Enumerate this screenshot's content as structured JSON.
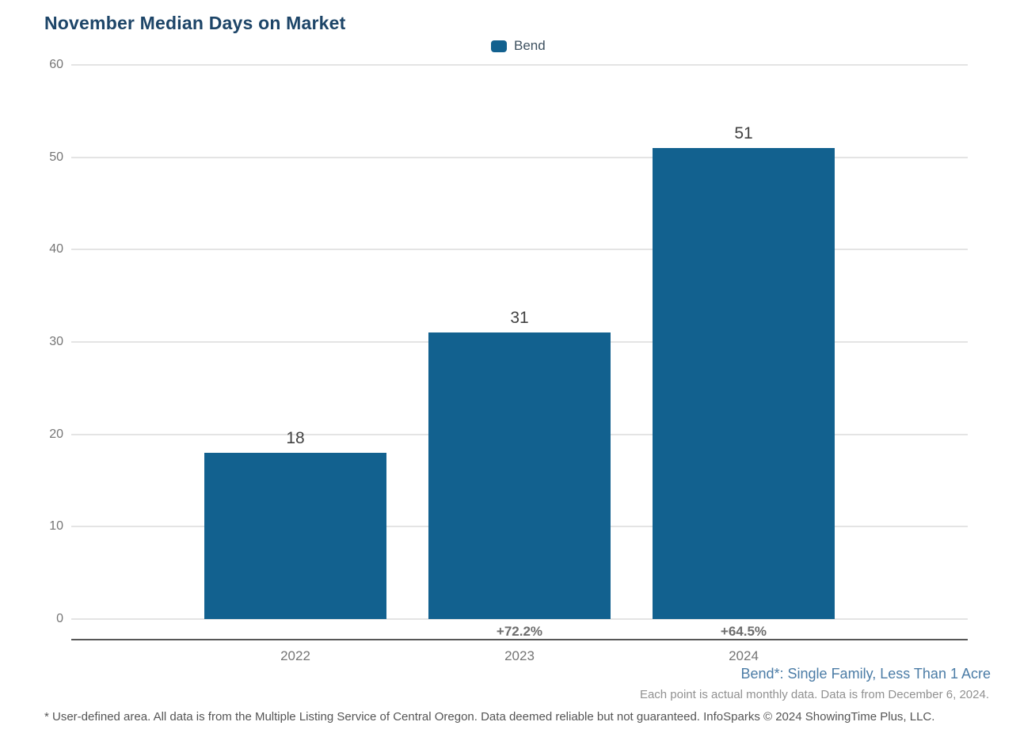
{
  "title": "November Median Days on Market",
  "legend": {
    "label": "Bend",
    "swatch_color": "#12618f"
  },
  "chart_data": {
    "type": "bar",
    "title": "November Median Days on Market",
    "categories": [
      "2022",
      "2023",
      "2024"
    ],
    "series": [
      {
        "name": "Bend",
        "values": [
          18,
          31,
          51
        ],
        "color": "#12618f"
      }
    ],
    "value_labels": [
      "18",
      "31",
      "51"
    ],
    "pct_change_labels": [
      "",
      "+72.2%",
      "+64.5%"
    ],
    "xlabel": "",
    "ylabel": "",
    "ylim": [
      0,
      60
    ],
    "yticks": [
      0,
      10,
      20,
      30,
      40,
      50,
      60
    ],
    "grid": "horizontal",
    "legend_position": "top-center"
  },
  "footnotes": {
    "series_definition": "Bend*: Single Family, Less Than 1 Acre",
    "data_note": "Each point is actual monthly data. Data is from December 6, 2024.",
    "disclaimer": "* User-defined area. All data is from the Multiple Listing Service of Central Oregon. Data deemed reliable but not guaranteed. InfoSparks © 2024 ShowingTime Plus, LLC."
  },
  "colors": {
    "bar": "#12618f",
    "title": "#1d4568",
    "gridline": "#e4e4e4",
    "axis_line": "#575757",
    "tick_text": "#757575",
    "value_label_text": "#424242",
    "pct_text": "#6e6e6e",
    "series_definition_text": "#4b7ca6",
    "note_text": "#919191",
    "disclaimer_text": "#555555"
  }
}
